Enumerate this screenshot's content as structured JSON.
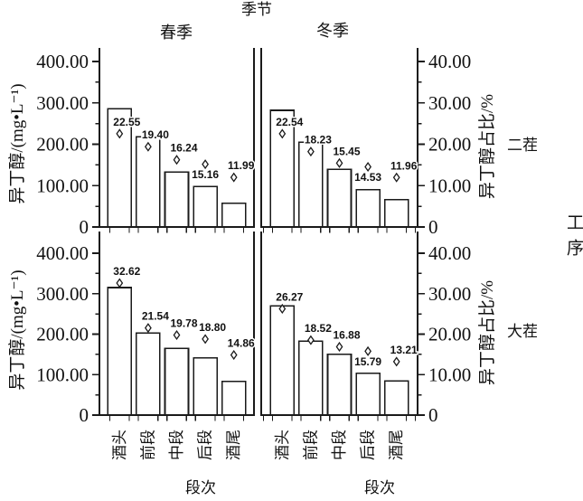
{
  "chart_data": {
    "type": "bar",
    "title": "季节",
    "column_titles": [
      "春季",
      "冬季"
    ],
    "row_titles": [
      "二茬",
      "大茬"
    ],
    "row_group_title": "工序",
    "categories": [
      "酒头",
      "前段",
      "中段",
      "后段",
      "酒尾"
    ],
    "xlabel": "段次",
    "left_ylabel": "异丁醇/(mg•L⁻¹)",
    "right_ylabel": "异丁醇占比/%",
    "left_ylim": [
      0,
      400
    ],
    "right_ylim": [
      0,
      40
    ],
    "left_axis_ticks": [
      "400.00",
      "300.00",
      "200.00",
      "100.00",
      "0"
    ],
    "right_axis_ticks": [
      "40.00",
      "30.00",
      "20.00",
      "10.00",
      "0"
    ],
    "legend_position": "none",
    "grid": false,
    "panels": [
      {
        "season": "春季",
        "process": "二茬",
        "bars_mg_per_L": [
          286,
          218,
          133,
          98,
          57
        ],
        "pct": [
          22.55,
          19.4,
          16.24,
          15.16,
          11.99
        ],
        "pct_label_side": [
          "above",
          "above",
          "above",
          "below",
          "above"
        ]
      },
      {
        "season": "冬季",
        "process": "二茬",
        "bars_mg_per_L": [
          282,
          205,
          139,
          90,
          66
        ],
        "pct": [
          22.54,
          18.23,
          15.45,
          14.53,
          11.96
        ],
        "pct_label_side": [
          "above",
          "above",
          "above",
          "below",
          "above"
        ]
      },
      {
        "season": "春季",
        "process": "大茬",
        "bars_mg_per_L": [
          315,
          203,
          165,
          141,
          83
        ],
        "pct": [
          32.62,
          21.54,
          19.78,
          18.8,
          14.86
        ],
        "pct_label_side": [
          "above",
          "above",
          "above",
          "above",
          "above"
        ]
      },
      {
        "season": "冬季",
        "process": "大茬",
        "bars_mg_per_L": [
          270,
          183,
          150,
          103,
          84
        ],
        "pct": [
          26.27,
          18.52,
          16.88,
          15.79,
          13.21
        ],
        "pct_label_side": [
          "above",
          "above",
          "above",
          "below",
          "above"
        ]
      }
    ]
  },
  "colors": {
    "background": "#ffffff",
    "bar_fill": "#ffffff",
    "stroke": "#1a1a1a",
    "text": "#111111"
  }
}
